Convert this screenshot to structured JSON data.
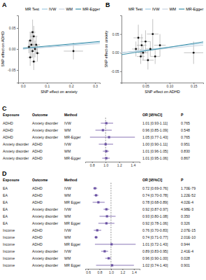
{
  "chart_data": [
    {
      "type": "scatter",
      "title": "A",
      "x_label": "SNP effect on anxiety",
      "y_label": "SNP effect on ADHD",
      "legend_title": "MR Test",
      "xlim": [
        -0.02,
        0.32
      ],
      "xticks": [
        {
          "value": 0,
          "label": "0.0"
        },
        0.1,
        0.2,
        0.3
      ],
      "ylim": [
        -0.08,
        0.08
      ],
      "yticks": [
        -0.05,
        {
          "value": 0,
          "label": "0.00"
        },
        0.05
      ],
      "x": [
        0.03,
        0.035,
        0.04,
        0.045,
        0.05,
        0.03,
        0.04,
        0.055,
        0.06,
        0.025,
        0.045,
        0.21
      ],
      "y": [
        0.02,
        0.01,
        -0.005,
        0.03,
        0.0,
        -0.02,
        0.04,
        0.01,
        -0.01,
        0.005,
        -0.03,
        -0.005
      ],
      "x_err": [
        0.01,
        0.012,
        0.01,
        0.015,
        0.01,
        0.01,
        0.012,
        0.015,
        0.01,
        0.008,
        0.01,
        0.04
      ],
      "y_err": [
        0.02,
        0.03,
        0.015,
        0.025,
        0.02,
        0.02,
        0.03,
        0.02,
        0.02,
        0.015,
        0.02,
        0.02
      ],
      "lines": [
        {
          "name": "IVW",
          "color": "#9ecae1",
          "slope": 0.05,
          "intercept": 0
        },
        {
          "name": "WM",
          "color": "#c6d3df",
          "slope": 0.04,
          "intercept": 0
        },
        {
          "name": "MR-Egger",
          "color": "#3a8fa8",
          "slope": 0.05,
          "intercept": 0.002
        }
      ],
      "grid": false
    },
    {
      "type": "scatter",
      "title": "B",
      "x_label": "SNP effect on ADHD",
      "y_label": "SNP effect on anxiety",
      "legend_title": "MR Test",
      "xlim": [
        0,
        0.17
      ],
      "xticks": [
        0.05,
        {
          "value": 0.1,
          "label": "0.10"
        },
        0.15
      ],
      "ylim": [
        -0.08,
        0.1
      ],
      "yticks": [
        -0.05,
        {
          "value": 0,
          "label": "0.00"
        },
        0.05
      ],
      "x": [
        0.03,
        0.035,
        0.04,
        0.042,
        0.045,
        0.05,
        0.055,
        0.06,
        0.065,
        0.07,
        0.08,
        0.15
      ],
      "y": [
        0.01,
        0.04,
        -0.01,
        0.02,
        0.0,
        0.03,
        -0.02,
        0.01,
        0.05,
        -0.01,
        0.02,
        0.0
      ],
      "x_err": [
        0.008,
        0.01,
        0.008,
        0.01,
        0.01,
        0.01,
        0.012,
        0.01,
        0.012,
        0.01,
        0.012,
        0.02
      ],
      "y_err": [
        0.02,
        0.035,
        0.02,
        0.03,
        0.02,
        0.03,
        0.025,
        0.02,
        0.04,
        0.02,
        0.03,
        0.03
      ],
      "lines": [
        {
          "name": "IVW",
          "color": "#9ecae1",
          "slope": 0.15,
          "intercept": 0
        },
        {
          "name": "WM",
          "color": "#c6d3df",
          "slope": 0.12,
          "intercept": 0
        },
        {
          "name": "MR-Egger",
          "color": "#3a8fa8",
          "slope": 0.2,
          "intercept": -0.005
        }
      ],
      "grid": false
    },
    {
      "type": "forest",
      "title": "C",
      "columns": [
        "Exposure",
        "Outcome",
        "Method",
        "OR [95%CI]",
        "P"
      ],
      "exposure": [
        "ADHD",
        "ADHD",
        "ADHD",
        "Anxiety disorder",
        "Anxiety disorder",
        "Anxiety disorder"
      ],
      "outcome": [
        "Anxiety disorder",
        "Anxiety disorder",
        "Anxiety disorder",
        "ADHD",
        "ADHD",
        "ADHD"
      ],
      "method": [
        "IVW",
        "WM",
        "MR-Egger",
        "IVW",
        "WM",
        "MR-Egger"
      ],
      "values": [
        1.01,
        0.96,
        1.05,
        1.0,
        1.01,
        1.01
      ],
      "ci_low": [
        0.93,
        0.85,
        0.77,
        0.9,
        0.96,
        0.95
      ],
      "ci_high": [
        1.11,
        1.09,
        1.43,
        1.11,
        1.05,
        1.06
      ],
      "value_labels": [
        "1.01 [0.93-1.11]",
        "0.96 [0.85-1.09]",
        "1.05 [0.77-1.43]",
        "1.00 [0.90-1.11]",
        "1.01 [0.96-1.05]",
        "1.01 [0.95-1.06]"
      ],
      "p": [
        "0.765",
        "0.548",
        "0.765",
        "0.951",
        "0.830",
        "0.867"
      ],
      "xlim": [
        0.7,
        1.5
      ],
      "xticks": [
        0.8,
        {
          "value": 1,
          "label": "1.0"
        },
        1.2,
        1.4
      ],
      "reference": 1,
      "color": "#6a51a3"
    },
    {
      "type": "forest",
      "title": "D",
      "columns": [
        "Exposure",
        "Outcome",
        "Method",
        "OR [95%CI]",
        "P"
      ],
      "exposure": [
        "EA",
        "EA",
        "EA",
        "EA",
        "EA",
        "EA",
        "Income",
        "Income",
        "Income",
        "Income",
        "Income",
        "Income"
      ],
      "outcome": [
        "ADHD",
        "ADHD",
        "ADHD",
        "Anxiety disorder",
        "Anxiety disorder",
        "Anxiety disorder",
        "ADHD",
        "ADHD",
        "ADHD",
        "Anxiety disorder",
        "Anxiety disorder",
        "Anxiety disorder"
      ],
      "method": [
        "IVW",
        "WM",
        "MR Egger",
        "IVW",
        "WM",
        "MR Egger",
        "IVW",
        "WM",
        "MR Egger",
        "IVW",
        "WM",
        "MR Egger"
      ],
      "values": [
        0.72,
        0.74,
        0.78,
        0.92,
        0.93,
        0.92,
        0.76,
        0.74,
        1.01,
        0.89,
        0.96,
        1.02
      ],
      "ci_low": [
        0.69,
        0.7,
        0.68,
        0.87,
        0.8,
        0.78,
        0.7,
        0.71,
        0.72,
        0.83,
        0.9,
        0.74
      ],
      "ci_high": [
        0.76,
        0.78,
        0.89,
        0.97,
        1.08,
        1.06,
        0.83,
        0.77,
        1.43,
        0.95,
        1.0,
        1.4
      ],
      "value_labels": [
        "0.72 [0.69-0.76]",
        "0.74 [0.70-0.78]",
        "0.78 [0.68-0.89]",
        "0.92 [0.87-0.97]",
        "0.93 [0.80-1.08]",
        "0.92 [0.78-1.06]",
        "0.76 [0.70-0.83]",
        "0.74 [0.71-0.77]",
        "1.01 [0.72-1.43]",
        "0.89 [0.83-0.95]",
        "0.96 [0.90-1.00]",
        "1.02 [0.74-1.40]"
      ],
      "p": [
        "1.70E-79",
        "1.22E-52",
        "4.02E-4",
        "4.98E-3",
        "0.350",
        "0.326",
        "2.07E-15",
        "2.01E-10",
        "0.944",
        "2.41E-4",
        "0.028",
        "0.901"
      ],
      "xlim": [
        0.55,
        1.5
      ],
      "xticks": [
        0.6,
        0.8,
        {
          "value": 1,
          "label": "1.0"
        },
        1.2,
        1.4
      ],
      "reference": 1,
      "color": "#6a51a3"
    }
  ]
}
